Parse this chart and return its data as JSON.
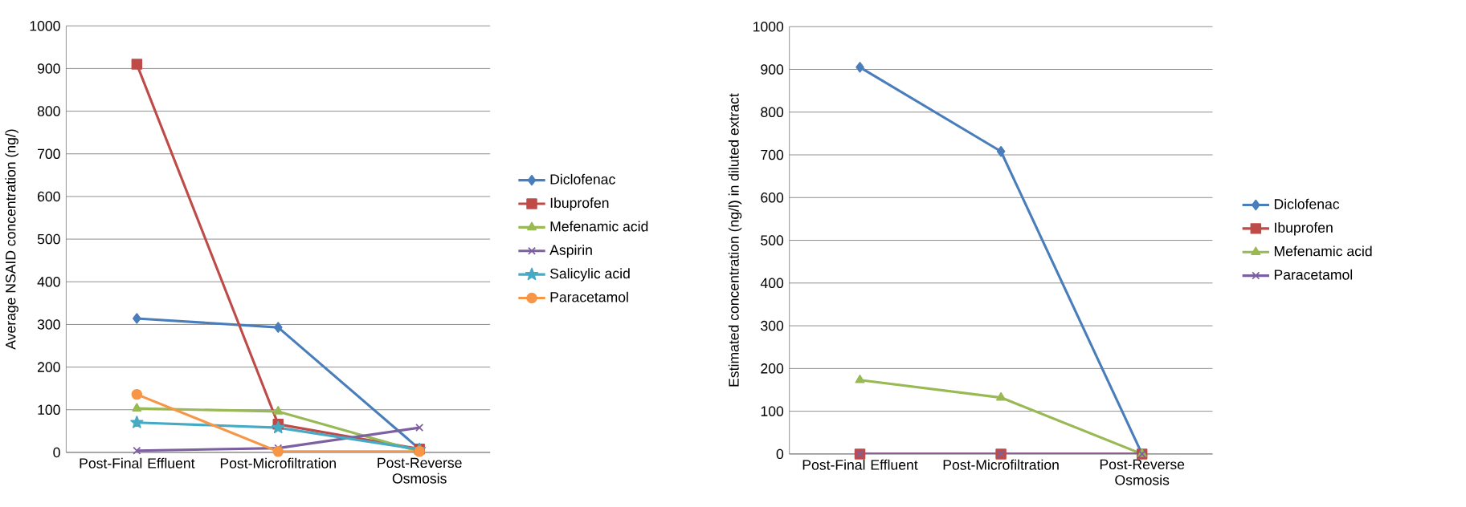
{
  "chart_data": [
    {
      "type": "line",
      "ylabel": "Average NSAID concentration (ng/)",
      "categories": [
        "Post-Final Effluent",
        "Post-Microfiltration",
        "Post-Reverse Osmosis"
      ],
      "ylim": [
        0,
        1000
      ],
      "yticks": [
        0,
        100,
        200,
        300,
        400,
        500,
        600,
        700,
        800,
        900,
        1000
      ],
      "grid": "y",
      "legend": "right",
      "series": [
        {
          "name": "Diclofenac",
          "color": "#4a7ebb",
          "marker": "diamond",
          "values": [
            314,
            293,
            8
          ]
        },
        {
          "name": "Ibuprofen",
          "color": "#be4b48",
          "marker": "square",
          "values": [
            910,
            66,
            8
          ]
        },
        {
          "name": "Mefenamic acid",
          "color": "#98b954",
          "marker": "triangle",
          "values": [
            103,
            96,
            2
          ]
        },
        {
          "name": "Aspirin",
          "color": "#7d60a0",
          "marker": "cross",
          "values": [
            4,
            10,
            58
          ]
        },
        {
          "name": "Salicylic acid",
          "color": "#46aac5",
          "marker": "star",
          "values": [
            70,
            58,
            7
          ]
        },
        {
          "name": "Paracetamol",
          "color": "#f79646",
          "marker": "circle",
          "values": [
            136,
            2,
            2
          ]
        }
      ]
    },
    {
      "type": "line",
      "ylabel": "Estimated concentration (ng/l) in diluted extract",
      "categories": [
        "Post-Final Effluent",
        "Post-Microfiltration",
        "Post-Reverse Osmosis"
      ],
      "ylim": [
        0,
        1000
      ],
      "yticks": [
        0,
        100,
        200,
        300,
        400,
        500,
        600,
        700,
        800,
        900,
        1000
      ],
      "grid": "y",
      "legend": "right",
      "series": [
        {
          "name": "Diclofenac",
          "color": "#4a7ebb",
          "marker": "diamond",
          "values": [
            905,
            708,
            0
          ]
        },
        {
          "name": "Ibuprofen",
          "color": "#be4b48",
          "marker": "square",
          "values": [
            0,
            0,
            0
          ]
        },
        {
          "name": "Mefenamic acid",
          "color": "#98b954",
          "marker": "triangle",
          "values": [
            173,
            132,
            0
          ]
        },
        {
          "name": "Paracetamol",
          "color": "#7d60a0",
          "marker": "cross",
          "values": [
            0,
            0,
            0
          ]
        }
      ]
    }
  ]
}
